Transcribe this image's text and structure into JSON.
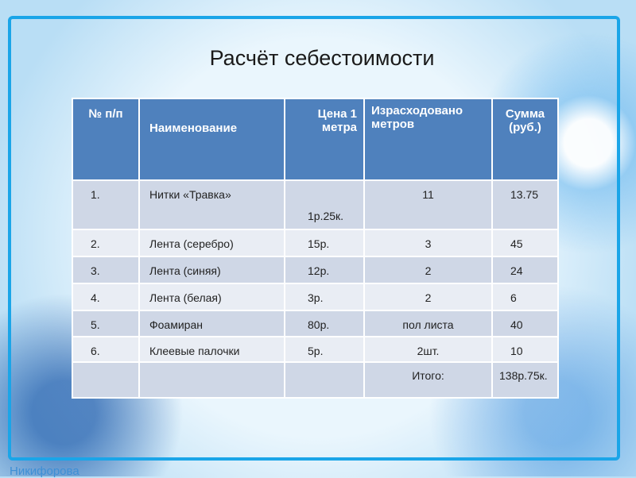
{
  "title": "Расчёт себестоимости",
  "table": {
    "headers": [
      "№ п/п",
      "Наименование",
      "Цена 1 метра",
      "Израсходовано метров",
      "Сумма (руб.)"
    ],
    "rows": [
      [
        "1.",
        "Нитки «Травка»",
        "1р.25к.",
        "11",
        "13.75"
      ],
      [
        "2.",
        "Лента (серебро)",
        "15р.",
        "3",
        "45"
      ],
      [
        "3.",
        "Лента (синяя)",
        "12р.",
        "2",
        "24"
      ],
      [
        "4.",
        "Лента (белая)",
        "3р.",
        "2",
        "6"
      ],
      [
        "5.",
        "Фоамиран",
        "80р.",
        "пол листа",
        "40"
      ],
      [
        "6.",
        "Клеевые палочки",
        "5р.",
        "2шт.",
        "10"
      ],
      [
        "",
        "",
        "",
        "Итого:",
        "138р.75к."
      ]
    ]
  },
  "author": "Никифорова",
  "colors": {
    "header": "#4f81bd",
    "row_dark": "#cfd7e6",
    "row_light": "#e9edf4",
    "frame": "#1aa5e8"
  }
}
